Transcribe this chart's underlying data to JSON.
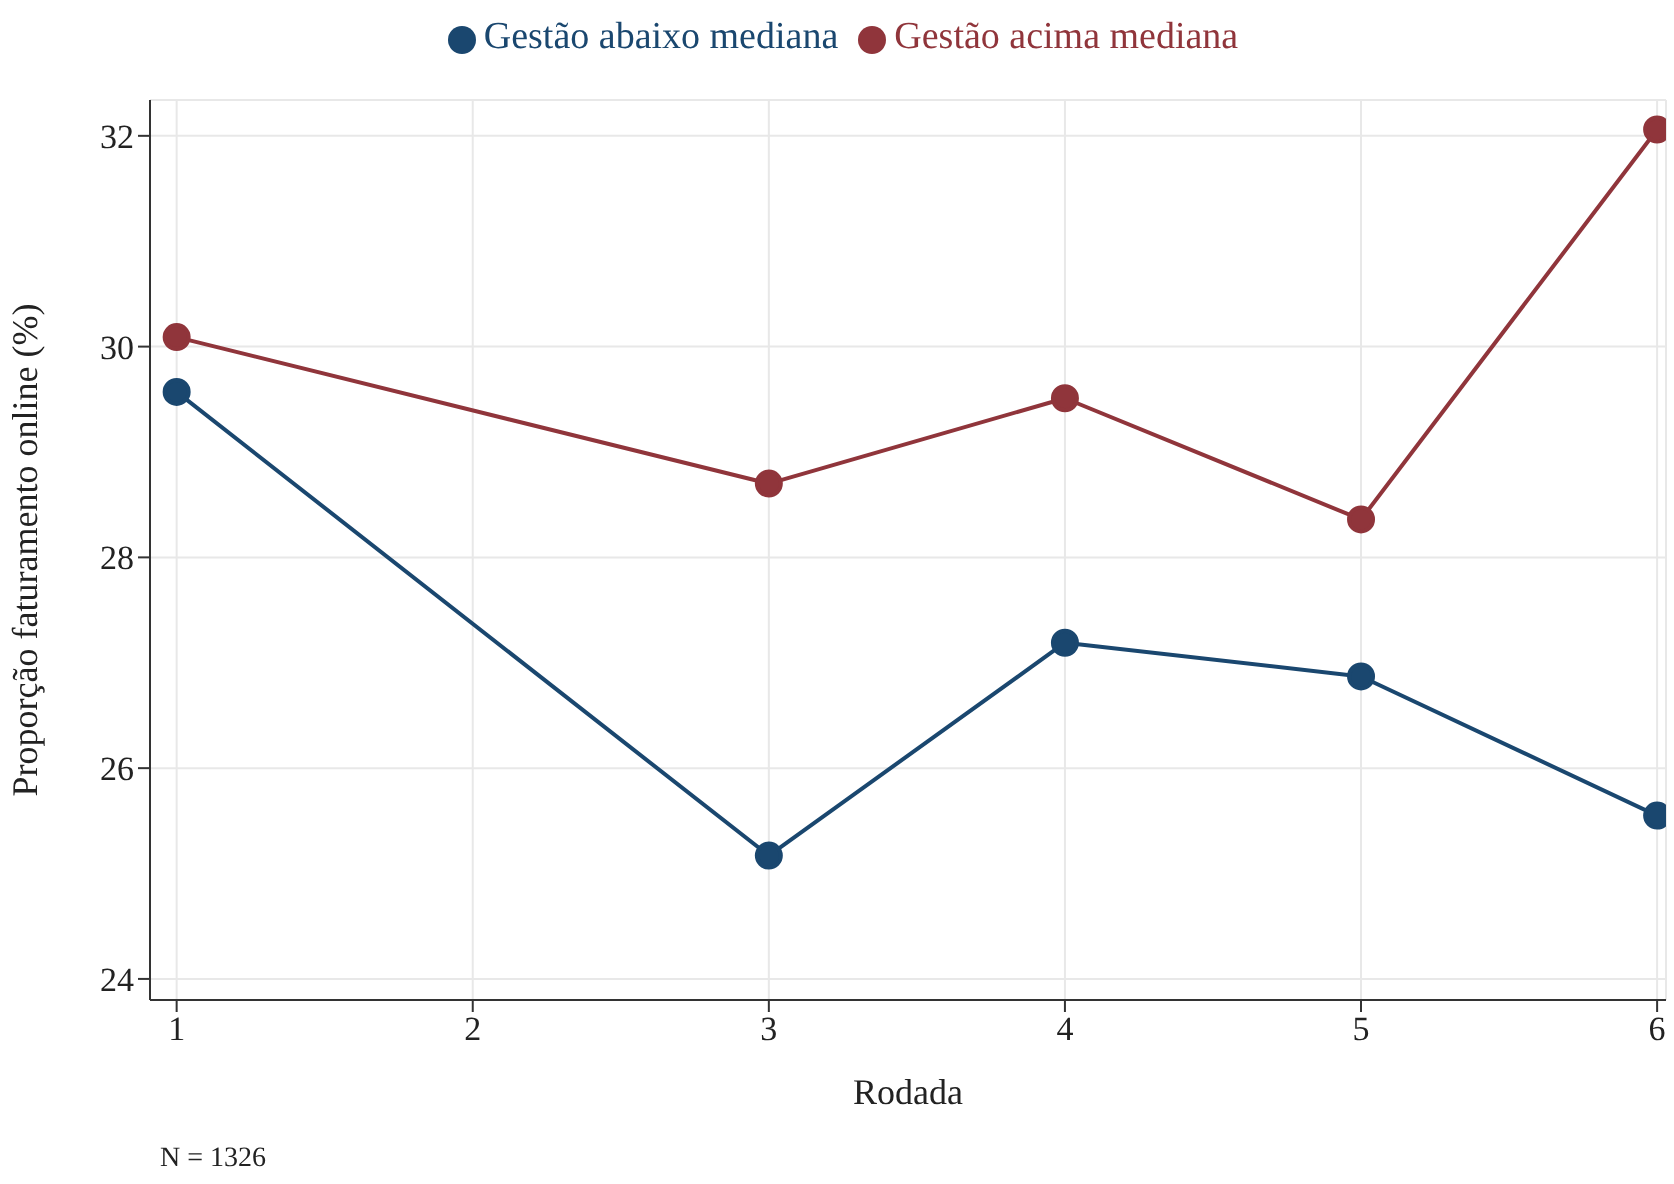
{
  "chart_data": {
    "type": "line",
    "xlabel": "Rodada",
    "ylabel": "Proporção faturamento online (%)",
    "x": [
      1,
      3,
      4,
      5,
      6
    ],
    "series": [
      {
        "name": "Gestão abaixo mediana",
        "color": "#1a476f",
        "values": [
          29.57,
          25.17,
          27.19,
          26.87,
          25.55
        ]
      },
      {
        "name": "Gestão acima mediana",
        "color": "#90353b",
        "values": [
          30.09,
          28.7,
          29.51,
          28.36,
          32.06
        ]
      }
    ],
    "xlim": [
      0.91,
      6.03
    ],
    "xticks": [
      1,
      2,
      3,
      4,
      5,
      6
    ],
    "ylim": [
      23.8,
      32.34
    ],
    "yticks": [
      24,
      26,
      28,
      30,
      32
    ],
    "grid": true,
    "legend": "top",
    "marker": "circle",
    "line_style": "solid",
    "annotations": [
      "N = 1326"
    ]
  }
}
